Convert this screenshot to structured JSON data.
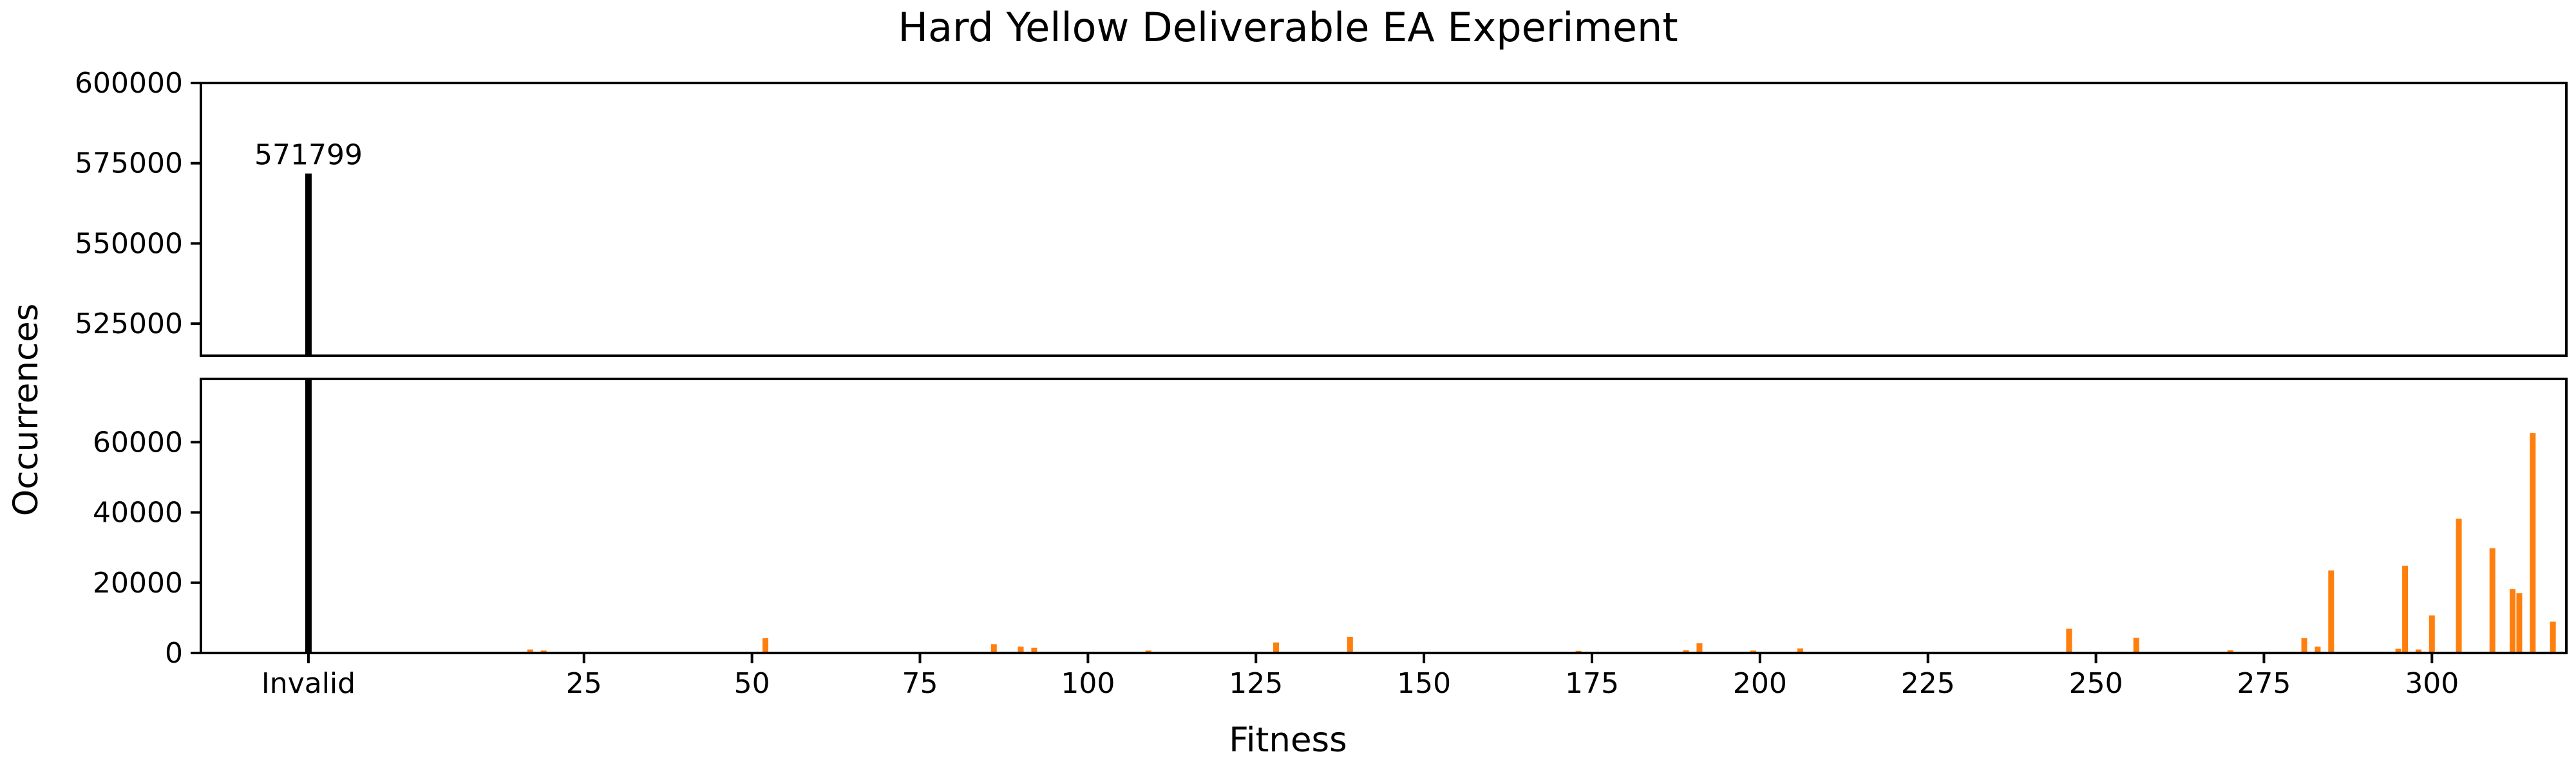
{
  "chart_data": {
    "type": "bar",
    "title": "Hard Yellow Deliverable EA Experiment",
    "xlabel": "Fitness",
    "ylabel": "Occurrences",
    "colors": {
      "invalid": "#000000",
      "valid": "#ff7f0e"
    },
    "x_ticks": [
      {
        "label": "Invalid",
        "value": -16
      },
      {
        "label": "25",
        "value": 25
      },
      {
        "label": "50",
        "value": 50
      },
      {
        "label": "75",
        "value": 75
      },
      {
        "label": "100",
        "value": 100
      },
      {
        "label": "125",
        "value": 125
      },
      {
        "label": "150",
        "value": 150
      },
      {
        "label": "175",
        "value": 175
      },
      {
        "label": "200",
        "value": 200
      },
      {
        "label": "225",
        "value": 225
      },
      {
        "label": "250",
        "value": 250
      },
      {
        "label": "275",
        "value": 275
      },
      {
        "label": "300",
        "value": 300
      }
    ],
    "xlim": [
      -32,
      320
    ],
    "broken_axis": true,
    "upper_ylim": [
      515000,
      600000
    ],
    "upper_yticks": [
      "525000",
      "550000",
      "575000",
      "600000"
    ],
    "lower_ylim": [
      0,
      78000
    ],
    "lower_yticks": [
      "0",
      "20000",
      "40000",
      "60000"
    ],
    "invalid": {
      "x": -16,
      "value": 571799,
      "label": "571799"
    },
    "valid": [
      {
        "x": 17,
        "value": 1000
      },
      {
        "x": 19,
        "value": 700
      },
      {
        "x": 52,
        "value": 4200
      },
      {
        "x": 86,
        "value": 2500
      },
      {
        "x": 90,
        "value": 1800
      },
      {
        "x": 92,
        "value": 1500
      },
      {
        "x": 109,
        "value": 700
      },
      {
        "x": 128,
        "value": 3000
      },
      {
        "x": 139,
        "value": 4600
      },
      {
        "x": 173,
        "value": 600
      },
      {
        "x": 189,
        "value": 800
      },
      {
        "x": 191,
        "value": 2800
      },
      {
        "x": 199,
        "value": 700
      },
      {
        "x": 206,
        "value": 1300
      },
      {
        "x": 246,
        "value": 6900
      },
      {
        "x": 256,
        "value": 4300
      },
      {
        "x": 270,
        "value": 800
      },
      {
        "x": 281,
        "value": 4200
      },
      {
        "x": 283,
        "value": 1800
      },
      {
        "x": 285,
        "value": 23500
      },
      {
        "x": 295,
        "value": 1200
      },
      {
        "x": 296,
        "value": 24800
      },
      {
        "x": 298,
        "value": 1000
      },
      {
        "x": 300,
        "value": 10700
      },
      {
        "x": 304,
        "value": 38200
      },
      {
        "x": 309,
        "value": 29800
      },
      {
        "x": 312,
        "value": 18200
      },
      {
        "x": 313,
        "value": 17000
      },
      {
        "x": 315,
        "value": 62600
      },
      {
        "x": 318,
        "value": 8900
      }
    ]
  }
}
